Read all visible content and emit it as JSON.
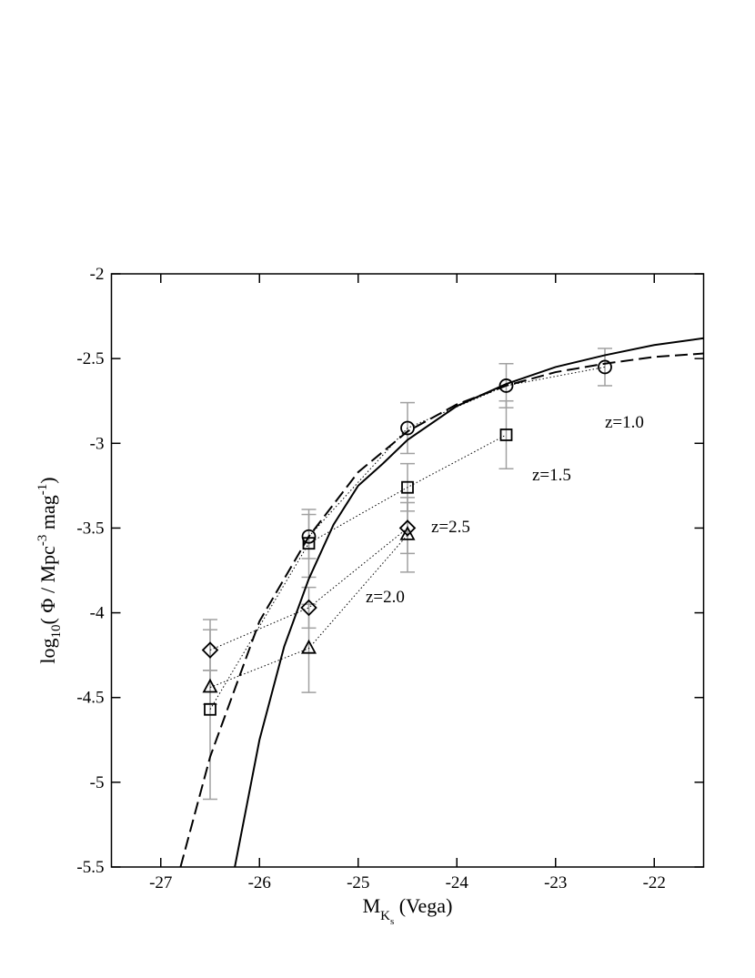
{
  "chart_data": {
    "type": "scatter",
    "x_label": [
      "M",
      "K",
      "s",
      " (Vega)"
    ],
    "y_label": [
      "log",
      "10",
      "( Φ / Mpc",
      "-3",
      " mag",
      "-1",
      ")"
    ],
    "xlim": [
      -27.5,
      -21.5
    ],
    "xticks": [
      -27,
      -26,
      -25,
      -24,
      -23,
      -22
    ],
    "ylim": [
      -5.5,
      -2
    ],
    "yticks": [
      -5.5,
      -5,
      -4.5,
      -4,
      -3.5,
      -3,
      -2.5,
      -2
    ],
    "error_color": "#a0a0a0",
    "series": [
      {
        "name": "z=1.0",
        "marker": "circle",
        "color": "#000000",
        "x": [
          -25.5,
          -24.5,
          -23.5,
          -22.5
        ],
        "values": [
          -3.55,
          -2.91,
          -2.66,
          -2.55
        ],
        "errors": [
          0.13,
          0.15,
          0.13,
          0.11
        ]
      },
      {
        "name": "z=1.5",
        "marker": "square",
        "color": "#000000",
        "x": [
          -26.5,
          -25.5,
          -24.5,
          -23.5
        ],
        "values": [
          -4.57,
          -3.59,
          -3.26,
          -2.95
        ],
        "errors": [
          0.53,
          0.2,
          0.14,
          0.2
        ]
      },
      {
        "name": "z=2.5",
        "marker": "diamond",
        "color": "#000000",
        "x": [
          -26.5,
          -25.5,
          -24.5
        ],
        "values": [
          -4.22,
          -3.97,
          -3.5
        ],
        "errors": [
          0.12,
          0.12,
          0.15
        ]
      },
      {
        "name": "z=2.0",
        "marker": "triangle",
        "color": "#000000",
        "x": [
          -26.5,
          -25.5,
          -24.5
        ],
        "values": [
          -4.44,
          -4.21,
          -3.54
        ],
        "errors": [
          0.1,
          0.26,
          0.22
        ]
      }
    ],
    "curves": [
      {
        "style": "solid",
        "color": "#000000",
        "x": [
          -26.25,
          -26,
          -25.75,
          -25.5,
          -25.25,
          -25,
          -24.75,
          -24.5,
          -24,
          -23.5,
          -23,
          -22.5,
          -22,
          -21.5
        ],
        "y": [
          -5.5,
          -4.75,
          -4.2,
          -3.8,
          -3.48,
          -3.25,
          -3.12,
          -2.98,
          -2.78,
          -2.65,
          -2.55,
          -2.48,
          -2.42,
          -2.38
        ]
      },
      {
        "style": "dashed",
        "color": "#000000",
        "x": [
          -26.8,
          -26.5,
          -26,
          -25.5,
          -25,
          -24.5,
          -24,
          -23.5,
          -23,
          -22.5,
          -22,
          -21.5
        ],
        "y": [
          -5.5,
          -4.85,
          -4.05,
          -3.55,
          -3.17,
          -2.93,
          -2.77,
          -2.66,
          -2.58,
          -2.53,
          -2.49,
          -2.47
        ]
      }
    ]
  }
}
